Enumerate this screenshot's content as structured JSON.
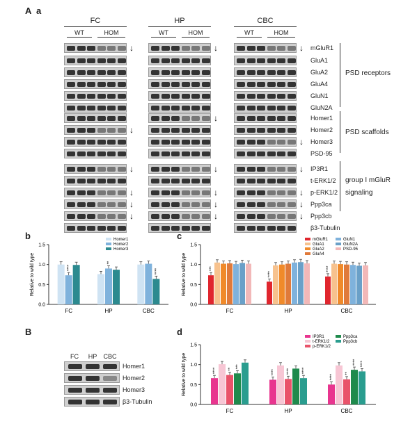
{
  "panel_labels": {
    "A": "A",
    "a": "a",
    "b": "b",
    "c": "c",
    "B": "B",
    "d": "d"
  },
  "regions": [
    "FC",
    "HP",
    "CBC"
  ],
  "genotypes": [
    "WT",
    "HOM"
  ],
  "blot_rows": [
    {
      "label": "mGluR1",
      "arrows": [
        true,
        true,
        true
      ]
    },
    {
      "label": "GluA1",
      "arrows": [
        false,
        false,
        false
      ]
    },
    {
      "label": "GluA2",
      "arrows": [
        false,
        false,
        false
      ]
    },
    {
      "label": "GluA4",
      "arrows": [
        false,
        false,
        false
      ]
    },
    {
      "label": "GluN1",
      "arrows": [
        false,
        false,
        false
      ]
    },
    {
      "label": "GluN2A",
      "arrows": [
        false,
        false,
        false
      ]
    },
    {
      "label": "Homer1",
      "arrows": [
        false,
        true,
        false
      ]
    },
    {
      "label": "Homer2",
      "arrows": [
        true,
        false,
        false
      ]
    },
    {
      "label": "Homer3",
      "arrows": [
        false,
        false,
        true
      ]
    },
    {
      "label": "PSD-95",
      "arrows": [
        false,
        false,
        false
      ]
    },
    {
      "label": "IP3R1",
      "arrows": [
        true,
        true,
        true
      ]
    },
    {
      "label": "t-ERK1/2",
      "arrows": [
        false,
        false,
        false
      ]
    },
    {
      "label": "p-ERK1/2",
      "arrows": [
        true,
        true,
        true
      ]
    },
    {
      "label": "Ppp3ca",
      "arrows": [
        true,
        true,
        true
      ]
    },
    {
      "label": "Ppp3cb",
      "arrows": [
        true,
        true,
        true
      ]
    },
    {
      "label": "β3-Tubulin",
      "arrows": [
        false,
        false,
        false
      ]
    }
  ],
  "groups": [
    {
      "label": "PSD receptors"
    },
    {
      "label": "PSD scaffolds"
    },
    {
      "label": "group I mGluR"
    },
    {
      "label": "signaling"
    }
  ],
  "panel_B": {
    "regions": [
      "FC",
      "HP",
      "CBC"
    ],
    "rows": [
      "Homer1",
      "Homer2",
      "Homer3",
      "β3-Tubulin"
    ]
  },
  "chart_data": [
    {
      "type": "bar",
      "panel": "b",
      "ylabel": "Relative to wild type",
      "ylim": [
        0,
        1.5
      ],
      "yticks": [
        "0.0",
        "0.5",
        "1.0",
        "1.5"
      ],
      "categories": [
        "FC",
        "HP",
        "CBC"
      ],
      "colors": [
        "#cfe3f3",
        "#7fb2dc",
        "#2c8a8f"
      ],
      "series": [
        {
          "name": "Homer1",
          "values": [
            1.0,
            0.76,
            1.0
          ],
          "stars": [
            "",
            "",
            ""
          ]
        },
        {
          "name": "Homer2",
          "values": [
            0.73,
            0.9,
            1.02
          ],
          "stars": [
            "****",
            "**",
            ""
          ]
        },
        {
          "name": "Homer3",
          "values": [
            0.99,
            0.87,
            0.64
          ],
          "stars": [
            "",
            "",
            "****"
          ]
        }
      ]
    },
    {
      "type": "bar",
      "panel": "c",
      "ylabel": "Relative to wild type",
      "ylim": [
        0,
        1.5
      ],
      "yticks": [
        "0.0",
        "0.5",
        "1.0",
        "1.5"
      ],
      "categories": [
        "FC",
        "HP",
        "CBC"
      ],
      "colors": [
        "#e0262e",
        "#f7c28e",
        "#f08a2a",
        "#e07a3a",
        "#7fb2dc",
        "#6aa0c8",
        "#f2b8b8"
      ],
      "series": [
        {
          "name": "mGluR1",
          "values": [
            0.73,
            0.57,
            0.7
          ],
          "stars": [
            "***",
            "****",
            "****"
          ]
        },
        {
          "name": "GluA1",
          "values": [
            1.05,
            0.98,
            1.02
          ],
          "stars": [
            "",
            "",
            ""
          ]
        },
        {
          "name": "GluA2",
          "values": [
            1.02,
            1.0,
            1.01
          ],
          "stars": [
            "",
            "",
            ""
          ]
        },
        {
          "name": "GluA4",
          "values": [
            1.03,
            1.02,
            1.0
          ],
          "stars": [
            "",
            "",
            ""
          ]
        },
        {
          "name": "GluN1",
          "values": [
            1.01,
            1.05,
            0.99
          ],
          "stars": [
            "",
            "",
            ""
          ]
        },
        {
          "name": "GluN2A",
          "values": [
            1.04,
            1.06,
            0.97
          ],
          "stars": [
            "",
            "",
            ""
          ]
        },
        {
          "name": "PSD-95",
          "values": [
            1.02,
            1.03,
            0.98
          ],
          "stars": [
            "",
            "",
            ""
          ]
        }
      ]
    },
    {
      "type": "bar",
      "panel": "d",
      "ylabel": "Relative to wild type",
      "ylim": [
        0,
        1.5
      ],
      "yticks": [
        "0.0",
        "0.5",
        "1.0",
        "1.5"
      ],
      "categories": [
        "FC",
        "HP",
        "CBC"
      ],
      "colors": [
        "#e8358f",
        "#f7c6d4",
        "#e9536a",
        "#1f8a4c",
        "#2a9d8f"
      ],
      "series": [
        {
          "name": "IP3R1",
          "values": [
            0.66,
            0.62,
            0.5
          ],
          "stars": [
            "****",
            "****",
            "****"
          ]
        },
        {
          "name": "t-ERK1/2",
          "values": [
            1.01,
            0.98,
            0.98
          ],
          "stars": [
            "",
            "",
            ""
          ]
        },
        {
          "name": "p-ERK1/2",
          "values": [
            0.74,
            0.64,
            0.63
          ],
          "stars": [
            "**",
            "****",
            "**"
          ]
        },
        {
          "name": "Ppp3ca",
          "values": [
            0.78,
            0.9,
            0.87
          ],
          "stars": [
            "***",
            "",
            "****"
          ]
        },
        {
          "name": "Ppp3cb",
          "values": [
            1.05,
            0.66,
            0.83
          ],
          "stars": [
            "",
            "****",
            "****"
          ]
        }
      ]
    }
  ]
}
